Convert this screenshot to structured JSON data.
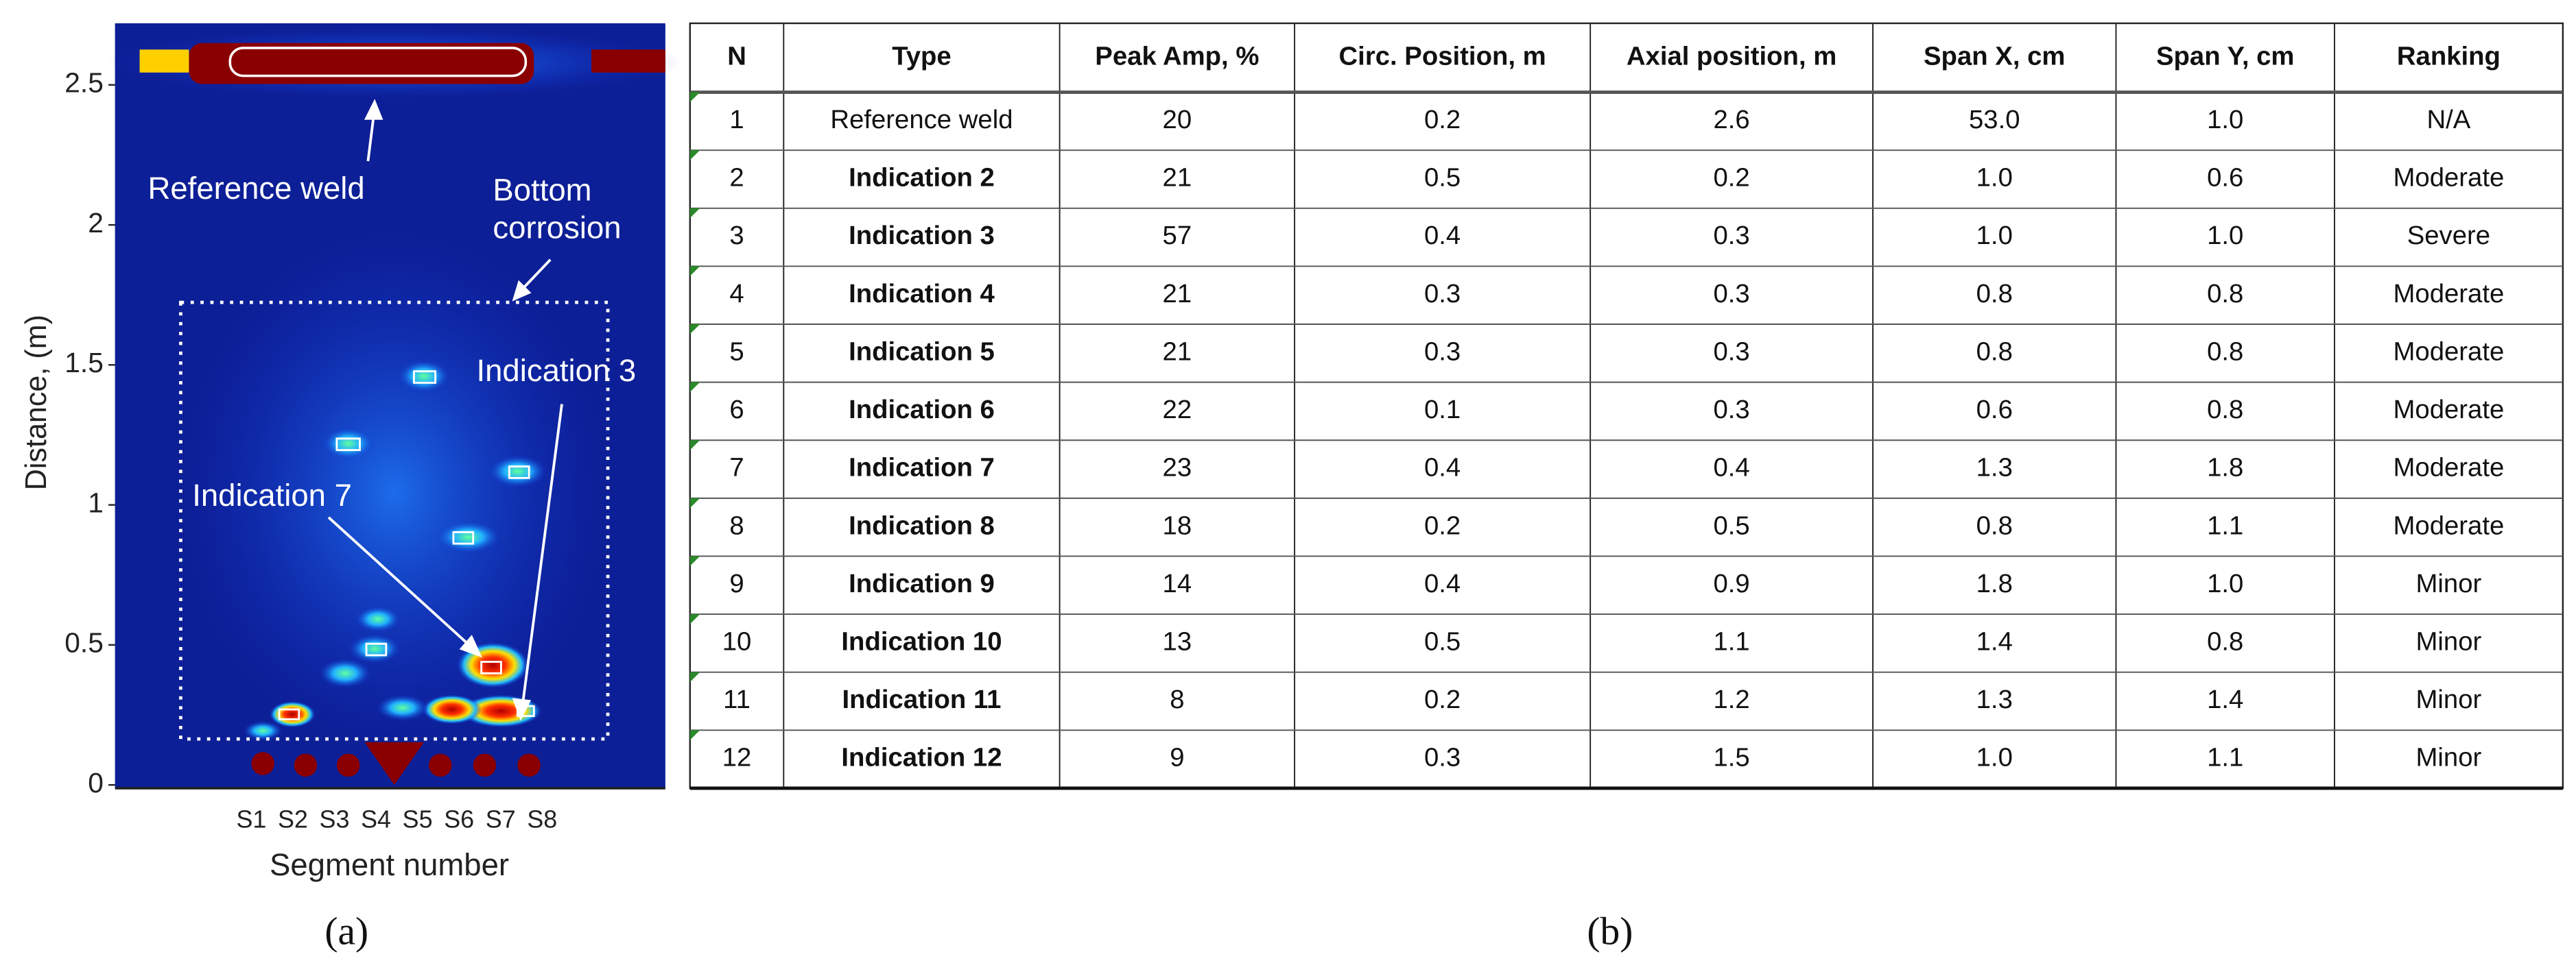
{
  "panel_a": {
    "ylabel": "Distance, (m)",
    "xlabel": "Segment number",
    "ylim": [
      0,
      2.72
    ],
    "yticks": [
      2.5,
      2,
      1.5,
      1,
      0.5,
      0
    ],
    "segments": [
      "S1",
      "S2",
      "S3",
      "S4",
      "S5",
      "S6",
      "S7",
      "S8"
    ],
    "annotations": {
      "reference_weld": "Reference weld",
      "bottom_corrosion": [
        "Bottom",
        "corrosion"
      ],
      "indication_3": "Indication 3",
      "indication_7": "Indication 7"
    },
    "caption": "(a)"
  },
  "panel_b": {
    "headers": [
      "N",
      "Type",
      "Peak Amp, %",
      "Circ. Position, m",
      "Axial position, m",
      "Span X, cm",
      "Span Y, cm",
      "Ranking"
    ],
    "rows": [
      [
        "1",
        "Reference weld",
        "20",
        "0.2",
        "2.6",
        "53.0",
        "1.0",
        "N/A"
      ],
      [
        "2",
        "Indication 2",
        "21",
        "0.5",
        "0.2",
        "1.0",
        "0.6",
        "Moderate"
      ],
      [
        "3",
        "Indication 3",
        "57",
        "0.4",
        "0.3",
        "1.0",
        "1.0",
        "Severe"
      ],
      [
        "4",
        "Indication 4",
        "21",
        "0.3",
        "0.3",
        "0.8",
        "0.8",
        "Moderate"
      ],
      [
        "5",
        "Indication 5",
        "21",
        "0.3",
        "0.3",
        "0.8",
        "0.8",
        "Moderate"
      ],
      [
        "6",
        "Indication 6",
        "22",
        "0.1",
        "0.3",
        "0.6",
        "0.8",
        "Moderate"
      ],
      [
        "7",
        "Indication 7",
        "23",
        "0.4",
        "0.4",
        "1.3",
        "1.8",
        "Moderate"
      ],
      [
        "8",
        "Indication 8",
        "18",
        "0.2",
        "0.5",
        "0.8",
        "1.1",
        "Moderate"
      ],
      [
        "9",
        "Indication 9",
        "14",
        "0.4",
        "0.9",
        "1.8",
        "1.0",
        "Minor"
      ],
      [
        "10",
        "Indication 10",
        "13",
        "0.5",
        "1.1",
        "1.4",
        "0.8",
        "Minor"
      ],
      [
        "11",
        "Indication 11",
        "8",
        "0.2",
        "1.2",
        "1.3",
        "1.4",
        "Minor"
      ],
      [
        "12",
        "Indication 12",
        "9",
        "0.3",
        "1.5",
        "1.0",
        "1.1",
        "Minor"
      ]
    ],
    "caption": "(b)"
  }
}
